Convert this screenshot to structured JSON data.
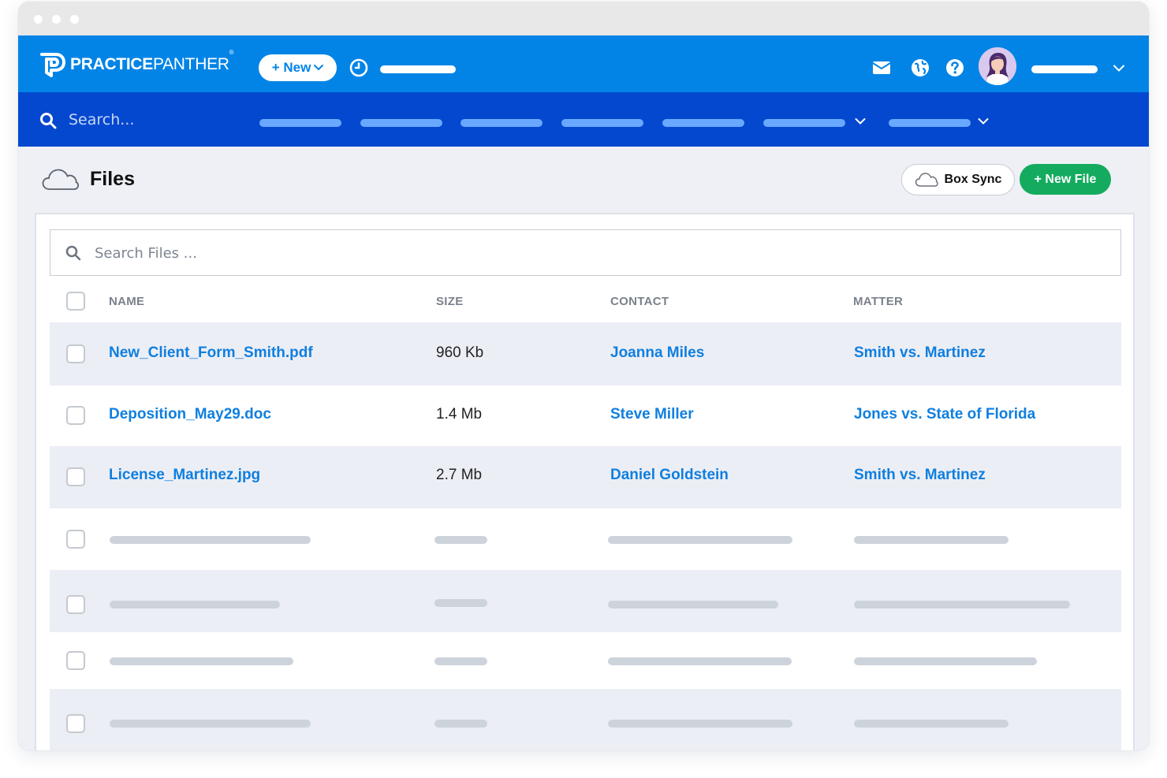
{
  "brand": {
    "name_bold": "PRACTICE",
    "name_light": "PANTHER",
    "reg_mark": "®"
  },
  "topnav": {
    "new_button_label": "+ New",
    "icons": [
      "clock-icon",
      "mail-icon",
      "globe-icon",
      "help-icon"
    ]
  },
  "subnav": {
    "search_placeholder": "Search..."
  },
  "page": {
    "title": "Files",
    "box_sync_label": "Box Sync",
    "new_file_label": "+ New File"
  },
  "file_search": {
    "placeholder": "Search Files ..."
  },
  "table": {
    "columns": [
      "NAME",
      "SIZE",
      "CONTACT",
      "MATTER"
    ],
    "rows": [
      {
        "name": "New_Client_Form_Smith.pdf",
        "size": "960 Kb",
        "contact": "Joanna Miles",
        "matter": "Smith vs. Martinez"
      },
      {
        "name": "Deposition_May29.doc",
        "size": "1.4 Mb",
        "contact": "Steve Miller",
        "matter": "Jones vs. State of Florida"
      },
      {
        "name": "License_Martinez.jpg",
        "size": "2.7 Mb",
        "contact": "Daniel Goldstein",
        "matter": "Smith vs. Martinez"
      }
    ]
  },
  "colors": {
    "primary_blue": "#0284e6",
    "nav_dark_blue": "#0448cf",
    "link_blue": "#0f7fdf",
    "new_file_green": "#14ab5f",
    "row_alt": "#eceef5"
  }
}
